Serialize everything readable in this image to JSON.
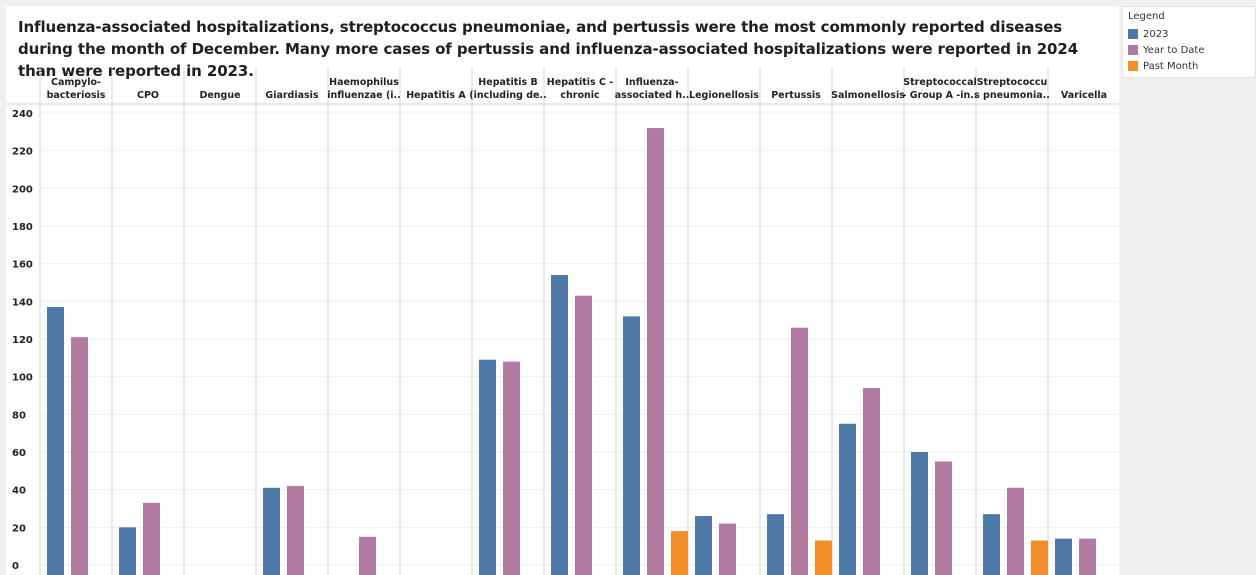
{
  "title": "Influenza-associated hospitalizations, streptococcus pneumoniae, and pertussis were the most commonly reported diseases during the month of December. Many more cases of pertussis and influenza-associated hospitalizations were reported in 2024 than were reported in 2023.",
  "legend": {
    "title": "Legend",
    "items": [
      {
        "label": "2023",
        "color": "#4e79a7"
      },
      {
        "label": "Year to Date",
        "color": "#b07aa1"
      },
      {
        "label": "Past Month",
        "color": "#f28e2b"
      }
    ]
  },
  "chart_data": {
    "type": "bar",
    "categories": [
      [
        "Campylo-",
        "bacteriosis"
      ],
      [
        "CPO"
      ],
      [
        "Dengue"
      ],
      [
        "Giardiasis"
      ],
      [
        "Haemophilus",
        "influenzae (i.."
      ],
      [
        "Hepatitis A"
      ],
      [
        "Hepatitis B",
        "(including de.."
      ],
      [
        "Hepatitis C -",
        "chronic"
      ],
      [
        "Influenza-",
        "associated h.."
      ],
      [
        "Legionellosis"
      ],
      [
        "Pertussis"
      ],
      [
        "Salmonellosis"
      ],
      [
        "Streptococcal",
        "- Group A -in.."
      ],
      [
        "Streptococcu",
        "s pneumonia.."
      ],
      [
        "Varicella"
      ]
    ],
    "series": [
      {
        "name": "2023",
        "color": "#4e79a7",
        "values": [
          137,
          20,
          0,
          41,
          0,
          0,
          109,
          154,
          132,
          26,
          27,
          75,
          60,
          27,
          14
        ]
      },
      {
        "name": "Year to Date",
        "color": "#b07aa1",
        "values": [
          121,
          33,
          0,
          42,
          15,
          0,
          108,
          143,
          232,
          22,
          126,
          94,
          55,
          41,
          14
        ]
      },
      {
        "name": "Past Month",
        "color": "#f28e2b",
        "values": [
          0,
          0,
          0,
          0,
          0,
          0,
          0,
          0,
          18,
          0,
          13,
          0,
          0,
          13,
          0
        ]
      }
    ],
    "yticks": [
      0,
      20,
      40,
      60,
      80,
      100,
      120,
      140,
      160,
      180,
      200,
      220,
      240
    ],
    "ylim": [
      0,
      240
    ],
    "grid": true,
    "legend_position": "right"
  }
}
